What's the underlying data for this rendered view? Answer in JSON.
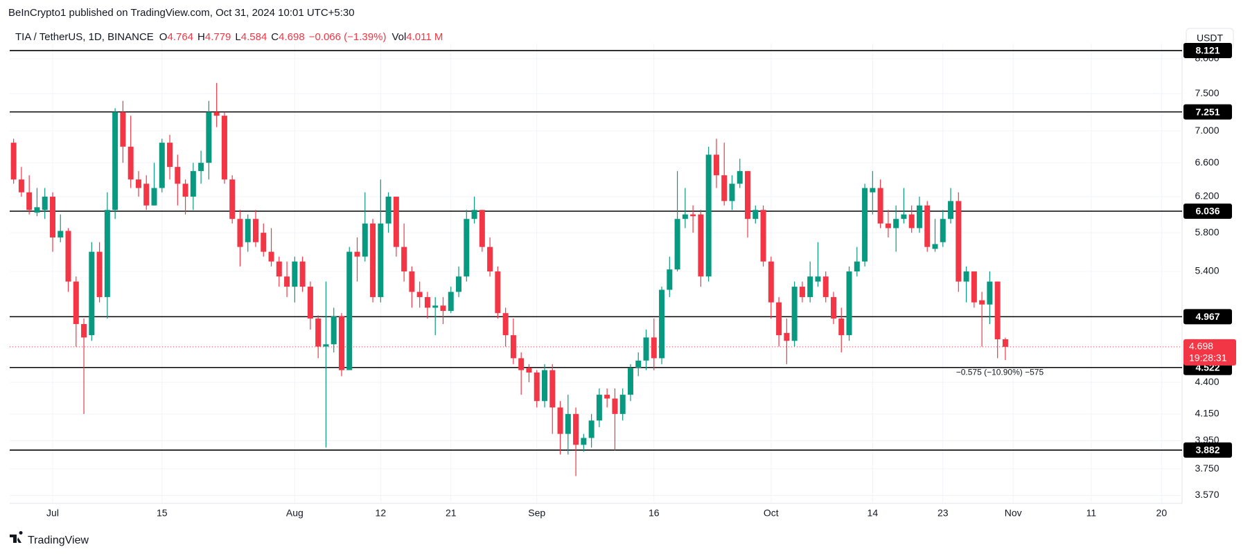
{
  "chart_data": {
    "type": "candlestick",
    "published": "BeInCrypto1 published on TradingView.com, Oct 31, 2024 10:01 UTC+5:30",
    "title": "TIA / TetherUS, 1D, BINANCE",
    "ohlc": [
      {
        "key": "O",
        "value": "4.764"
      },
      {
        "key": "H",
        "value": "4.779"
      },
      {
        "key": "L",
        "value": "4.584"
      },
      {
        "key": "C",
        "value": "4.698"
      }
    ],
    "change": "−0.066 (−1.39%)",
    "volume_key": "Vol",
    "volume": "4.011 M",
    "currency": "USDT",
    "brand": "TradingView",
    "measure_label": "−0.575 (−10.90%) −575",
    "countdown": "19:28:31",
    "last": 4.698,
    "log": true,
    "grid": true,
    "up_color": "#089981",
    "down_color": "#f23645",
    "level_color": "#000000",
    "ylim": [
      3.518,
      8.226
    ],
    "yticks": [
      {
        "value": 3.57,
        "label": "3.570"
      },
      {
        "value": 3.75,
        "label": "3.750"
      },
      {
        "value": 3.95,
        "label": "3.950"
      },
      {
        "value": 4.15,
        "label": "4.150"
      },
      {
        "value": 4.4,
        "label": "4.400"
      },
      {
        "value": 5.4,
        "label": "5.400"
      },
      {
        "value": 5.8,
        "label": "5.800"
      },
      {
        "value": 6.2,
        "label": "6.200"
      },
      {
        "value": 6.6,
        "label": "6.600"
      },
      {
        "value": 7,
        "label": "7.000"
      },
      {
        "value": 7.5,
        "label": "7.500"
      },
      {
        "value": 8,
        "label": "8.000"
      }
    ],
    "levels": [
      8.121,
      7.251,
      6.036,
      4.967,
      4.522,
      3.882
    ],
    "xticks": [
      {
        "value": "Jul 1",
        "label": "Jul"
      },
      {
        "value": "Jul 15",
        "label": "15"
      },
      {
        "value": "Aug 1",
        "label": "Aug"
      },
      {
        "value": "Aug 12",
        "label": "12"
      },
      {
        "value": "Aug 21",
        "label": "21"
      },
      {
        "value": "Sep 1",
        "label": "Sep"
      },
      {
        "value": "Sep 16",
        "label": "16"
      },
      {
        "value": "Oct 1",
        "label": "Oct"
      },
      {
        "value": "Oct 14",
        "label": "14"
      },
      {
        "value": "Oct 23",
        "label": "23"
      },
      {
        "value": "Nov 1",
        "label": "Nov"
      },
      {
        "value": "Nov 11",
        "label": "11"
      },
      {
        "value": "Nov 20",
        "label": "20"
      }
    ],
    "x": [
      "Jun 26",
      "Jun 27",
      "Jun 28",
      "Jun 29",
      "Jun 30",
      "Jul 1",
      "Jul 2",
      "Jul 3",
      "Jul 4",
      "Jul 5",
      "Jul 6",
      "Jul 7",
      "Jul 8",
      "Jul 9",
      "Jul 10",
      "Jul 11",
      "Jul 12",
      "Jul 13",
      "Jul 14",
      "Jul 15",
      "Jul 16",
      "Jul 17",
      "Jul 18",
      "Jul 19",
      "Jul 20",
      "Jul 21",
      "Jul 22",
      "Jul 23",
      "Jul 24",
      "Jul 25",
      "Jul 26",
      "Jul 27",
      "Jul 28",
      "Jul 29",
      "Jul 30",
      "Jul 31",
      "Aug 1",
      "Aug 2",
      "Aug 3",
      "Aug 4",
      "Aug 5",
      "Aug 6",
      "Aug 7",
      "Aug 8",
      "Aug 9",
      "Aug 10",
      "Aug 11",
      "Aug 12",
      "Aug 13",
      "Aug 14",
      "Aug 15",
      "Aug 16",
      "Aug 17",
      "Aug 18",
      "Aug 19",
      "Aug 20",
      "Aug 21",
      "Aug 22",
      "Aug 23",
      "Aug 24",
      "Aug 25",
      "Aug 26",
      "Aug 27",
      "Aug 28",
      "Aug 29",
      "Aug 30",
      "Aug 31",
      "Sep 1",
      "Sep 2",
      "Sep 3",
      "Sep 4",
      "Sep 5",
      "Sep 6",
      "Sep 7",
      "Sep 8",
      "Sep 9",
      "Sep 10",
      "Sep 11",
      "Sep 12",
      "Sep 13",
      "Sep 14",
      "Sep 15",
      "Sep 16",
      "Sep 17",
      "Sep 18",
      "Sep 19",
      "Sep 20",
      "Sep 21",
      "Sep 22",
      "Sep 23",
      "Sep 24",
      "Sep 25",
      "Sep 26",
      "Sep 27",
      "Sep 28",
      "Sep 29",
      "Sep 30",
      "Oct 1",
      "Oct 2",
      "Oct 3",
      "Oct 4",
      "Oct 5",
      "Oct 6",
      "Oct 7",
      "Oct 8",
      "Oct 9",
      "Oct 10",
      "Oct 11",
      "Oct 12",
      "Oct 13",
      "Oct 14",
      "Oct 15",
      "Oct 16",
      "Oct 17",
      "Oct 18",
      "Oct 19",
      "Oct 20",
      "Oct 21",
      "Oct 22",
      "Oct 23",
      "Oct 24",
      "Oct 25",
      "Oct 26",
      "Oct 27",
      "Oct 28",
      "Oct 29",
      "Oct 30",
      "Oct 31"
    ],
    "open": [
      6.85,
      6.4,
      6.25,
      6.02,
      6.05,
      6.2,
      5.75,
      5.82,
      5.3,
      4.9,
      4.8,
      5.6,
      5.15,
      6.05,
      7.25,
      6.8,
      6.4,
      6.35,
      6.1,
      6.3,
      6.85,
      6.55,
      6.35,
      6.2,
      6.5,
      6.6,
      7.25,
      7.2,
      6.4,
      5.95,
      5.7,
      5.95,
      5.8,
      5.6,
      5.5,
      5.35,
      5.25,
      5.5,
      5.25,
      4.95,
      4.7,
      4.72,
      4.97,
      4.5,
      5.6,
      5.55,
      5.9,
      5.15,
      5.9,
      6.2,
      5.65,
      5.4,
      5.2,
      5.15,
      5.05,
      5.07,
      5.02,
      5.2,
      5.35,
      5.95,
      6.05,
      5.65,
      5.4,
      5.0,
      4.8,
      4.6,
      4.52,
      4.48,
      4.25,
      4.5,
      4.2,
      4.0,
      4.15,
      3.92,
      3.97,
      4.1,
      4.3,
      4.27,
      4.15,
      4.3,
      4.52,
      4.58,
      4.78,
      4.6,
      5.22,
      5.42,
      5.95,
      6.0,
      6.0,
      5.35,
      6.7,
      6.45,
      6.15,
      6.35,
      6.5,
      5.95,
      6.05,
      5.5,
      5.1,
      4.82,
      4.75,
      5.25,
      5.15,
      5.3,
      5.35,
      5.15,
      4.95,
      4.8,
      5.4,
      5.5,
      6.25,
      6.3,
      5.9,
      5.85,
      5.95,
      6.0,
      5.85,
      6.1,
      5.63,
      5.7,
      5.95,
      6.15,
      5.3,
      5.4,
      5.12,
      5.08,
      5.3,
      4.764
    ],
    "high": [
      6.9,
      6.55,
      6.45,
      6.3,
      6.3,
      6.25,
      6.0,
      5.85,
      5.35,
      4.95,
      5.7,
      5.7,
      6.25,
      7.3,
      7.4,
      7.2,
      6.5,
      6.45,
      6.6,
      6.9,
      6.95,
      6.7,
      6.4,
      6.6,
      6.75,
      7.4,
      7.65,
      7.25,
      6.45,
      6.05,
      6.0,
      6.05,
      5.9,
      5.85,
      5.55,
      5.5,
      5.55,
      5.55,
      5.3,
      4.98,
      5.3,
      5.05,
      5.0,
      5.65,
      5.75,
      6.25,
      5.95,
      6.4,
      6.25,
      6.2,
      5.9,
      5.45,
      5.3,
      5.2,
      5.15,
      5.15,
      5.25,
      5.45,
      6.05,
      6.2,
      6.05,
      5.75,
      5.45,
      5.05,
      4.95,
      4.65,
      4.55,
      4.5,
      4.55,
      4.55,
      4.25,
      4.3,
      4.2,
      4.0,
      4.15,
      4.35,
      4.35,
      4.35,
      4.35,
      4.55,
      4.65,
      4.85,
      4.95,
      5.25,
      5.55,
      6.5,
      6.3,
      6.1,
      6.05,
      6.8,
      6.9,
      6.85,
      6.45,
      6.65,
      6.5,
      6.1,
      6.1,
      5.55,
      5.15,
      4.95,
      5.3,
      5.3,
      5.5,
      5.7,
      5.4,
      5.2,
      5.05,
      5.45,
      5.65,
      6.35,
      6.5,
      6.4,
      6.05,
      6.1,
      6.3,
      6.1,
      6.2,
      6.15,
      5.95,
      6.05,
      6.3,
      6.25,
      5.45,
      5.4,
      5.2,
      5.4,
      5.3,
      4.779
    ],
    "low": [
      6.35,
      6.2,
      6.0,
      5.98,
      5.95,
      5.6,
      5.7,
      5.2,
      4.7,
      4.15,
      4.75,
      5.1,
      4.95,
      5.95,
      6.6,
      6.3,
      6.2,
      6.05,
      6.1,
      6.25,
      6.4,
      6.1,
      6.0,
      6.05,
      6.35,
      6.4,
      7.05,
      6.35,
      5.9,
      5.45,
      5.6,
      5.65,
      5.55,
      5.45,
      5.25,
      5.15,
      5.1,
      5.2,
      4.85,
      4.6,
      3.9,
      4.65,
      4.45,
      4.5,
      5.3,
      5.5,
      5.1,
      5.1,
      5.8,
      5.55,
      5.3,
      5.05,
      5.05,
      4.95,
      4.8,
      4.9,
      5.0,
      5.15,
      5.3,
      5.9,
      5.6,
      5.35,
      4.95,
      4.7,
      4.55,
      4.3,
      4.4,
      4.2,
      4.2,
      4.0,
      3.85,
      3.85,
      3.7,
      3.87,
      3.9,
      4.05,
      4.2,
      3.88,
      4.1,
      4.25,
      4.45,
      4.5,
      4.5,
      4.55,
      5.15,
      5.4,
      5.85,
      5.8,
      5.25,
      5.3,
      6.3,
      6.1,
      6.05,
      6.3,
      5.75,
      5.9,
      5.45,
      4.95,
      4.7,
      4.55,
      4.7,
      5.1,
      5.1,
      5.25,
      5.1,
      4.9,
      4.65,
      4.75,
      5.35,
      5.45,
      6.0,
      5.85,
      5.75,
      5.6,
      5.9,
      5.8,
      5.8,
      5.6,
      5.6,
      5.65,
      5.9,
      5.2,
      5.1,
      5.05,
      4.7,
      4.9,
      4.6,
      4.584
    ],
    "close": [
      6.4,
      6.25,
      6.05,
      6.08,
      6.2,
      5.75,
      5.82,
      5.3,
      4.9,
      4.78,
      5.6,
      5.15,
      6.05,
      7.25,
      6.8,
      6.4,
      6.3,
      6.1,
      6.3,
      6.85,
      6.55,
      6.35,
      6.2,
      6.5,
      6.6,
      7.25,
      7.2,
      6.4,
      5.95,
      5.65,
      5.95,
      5.7,
      5.6,
      5.5,
      5.35,
      5.25,
      5.5,
      5.25,
      4.95,
      4.7,
      4.72,
      4.97,
      4.5,
      5.6,
      5.55,
      5.9,
      5.15,
      5.9,
      6.2,
      5.65,
      5.4,
      5.2,
      5.15,
      5.05,
      5.07,
      5.02,
      5.2,
      5.35,
      5.95,
      6.05,
      5.65,
      5.4,
      5.0,
      4.8,
      4.6,
      4.5,
      4.48,
      4.25,
      4.5,
      4.2,
      4.0,
      4.15,
      3.92,
      3.97,
      4.1,
      4.3,
      4.27,
      4.15,
      4.3,
      4.52,
      4.58,
      4.78,
      4.6,
      5.22,
      5.42,
      5.95,
      6.0,
      5.98,
      5.35,
      6.7,
      6.45,
      6.15,
      6.35,
      6.5,
      5.95,
      6.05,
      5.5,
      5.1,
      4.8,
      4.75,
      5.25,
      5.15,
      5.35,
      5.35,
      5.15,
      4.95,
      4.8,
      5.4,
      5.5,
      6.3,
      6.3,
      5.9,
      5.85,
      5.95,
      6.0,
      5.85,
      6.1,
      5.65,
      5.68,
      5.95,
      6.15,
      5.3,
      5.4,
      5.1,
      5.08,
      5.3,
      4.764,
      4.698
    ]
  }
}
